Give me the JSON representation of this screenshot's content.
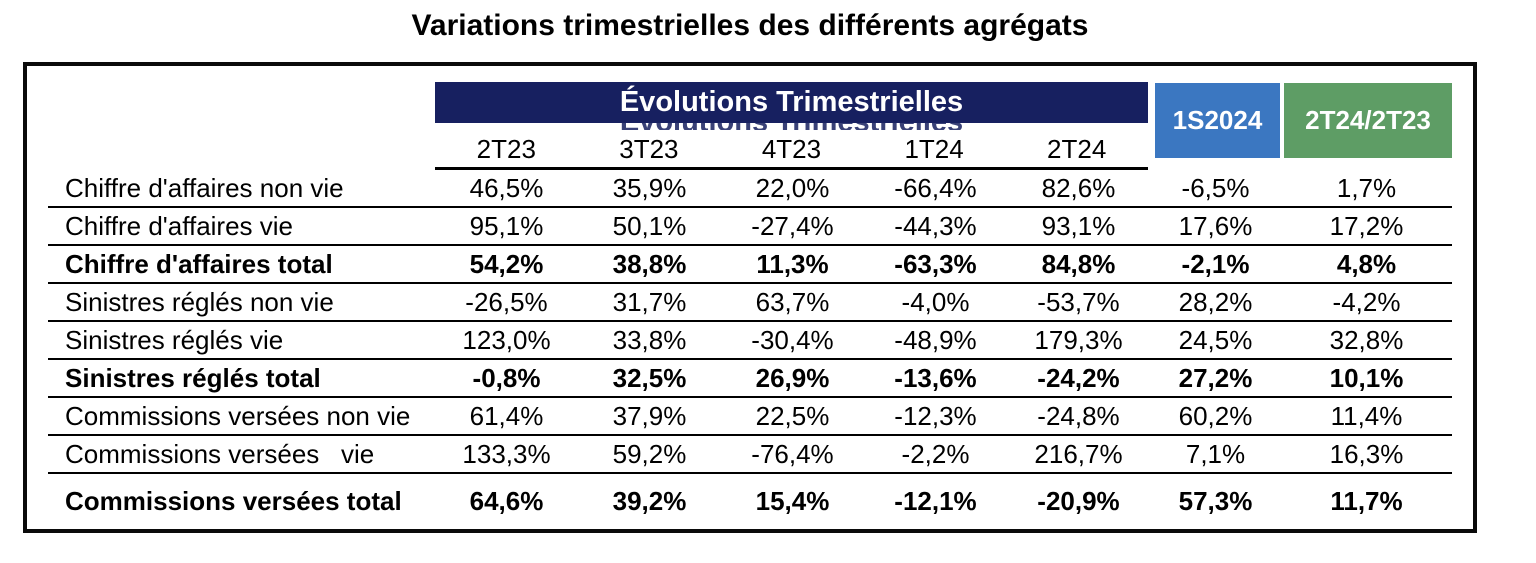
{
  "title": "Variations trimestrielles des différents agrégats",
  "colors": {
    "band_navy": "#172060",
    "box_blue": "#3b77c1",
    "box_green": "#5e9d65",
    "text": "#000000"
  },
  "table": {
    "group_header": "Évolutions Trimestrielles",
    "quarter_columns": [
      "2T23",
      "3T23",
      "4T23",
      "1T24",
      "2T24"
    ],
    "extra_columns": [
      {
        "label": "1S2024",
        "color": "#3b77c1"
      },
      {
        "label": "2T24/2T23",
        "color": "#5e9d65"
      }
    ],
    "rows": [
      {
        "label": "Chiffre d'affaires non vie",
        "bold": false,
        "values": [
          "46,5%",
          "35,9%",
          "22,0%",
          "-66,4%",
          "82,6%",
          "-6,5%",
          "1,7%"
        ]
      },
      {
        "label": "Chiffre d'affaires vie",
        "bold": false,
        "values": [
          "95,1%",
          "50,1%",
          "-27,4%",
          "-44,3%",
          "93,1%",
          "17,6%",
          "17,2%"
        ]
      },
      {
        "label": "Chiffre d'affaires total",
        "bold": true,
        "values": [
          "54,2%",
          "38,8%",
          "11,3%",
          "-63,3%",
          "84,8%",
          "-2,1%",
          "4,8%"
        ]
      },
      {
        "label": "Sinistres réglés non vie",
        "bold": false,
        "values": [
          "-26,5%",
          "31,7%",
          "63,7%",
          "-4,0%",
          "-53,7%",
          "28,2%",
          "-4,2%"
        ]
      },
      {
        "label": "Sinistres réglés vie",
        "bold": false,
        "values": [
          "123,0%",
          "33,8%",
          "-30,4%",
          "-48,9%",
          "179,3%",
          "24,5%",
          "32,8%"
        ]
      },
      {
        "label": "Sinistres réglés total",
        "bold": true,
        "values": [
          "-0,8%",
          "32,5%",
          "26,9%",
          "-13,6%",
          "-24,2%",
          "27,2%",
          "10,1%"
        ]
      },
      {
        "label": "Commissions versées non vie",
        "bold": false,
        "values": [
          "61,4%",
          "37,9%",
          "22,5%",
          "-12,3%",
          "-24,8%",
          "60,2%",
          "11,4%"
        ]
      },
      {
        "label": "Commissions versées   vie",
        "bold": false,
        "values": [
          "133,3%",
          "59,2%",
          "-76,4%",
          "-2,2%",
          "216,7%",
          "7,1%",
          "16,3%"
        ]
      },
      {
        "label": "Commissions versées total",
        "bold": true,
        "values": [
          "64,6%",
          "39,2%",
          "15,4%",
          "-12,1%",
          "-20,9%",
          "57,3%",
          "11,7%"
        ]
      }
    ]
  }
}
